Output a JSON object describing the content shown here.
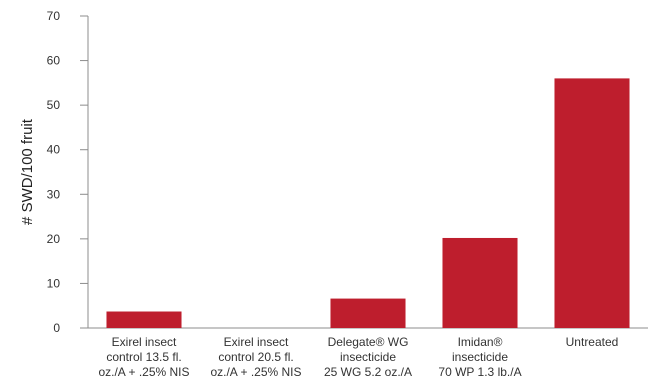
{
  "chart_data": {
    "type": "bar",
    "title": "",
    "xlabel": "",
    "ylabel": "# SWD/100 fruit",
    "ylim": [
      0,
      70
    ],
    "yticks": [
      0,
      10,
      20,
      30,
      40,
      50,
      60,
      70
    ],
    "grid": false,
    "categories": [
      [
        "Exirel insect",
        "control 13.5 fl.",
        "oz./A + .25% NIS"
      ],
      [
        "Exirel insect",
        "control 20.5 fl.",
        "oz./A + .25% NIS"
      ],
      [
        "Delegate® WG",
        "insecticide",
        "25 WG 5.2 oz./A"
      ],
      [
        "Imidan®",
        "insecticide",
        "70 WP 1.3 lb./A"
      ],
      [
        "Untreated"
      ]
    ],
    "values": [
      3.7,
      0,
      6.6,
      20.2,
      56
    ],
    "colors": {
      "bar": "#be1e2d",
      "axis": "#8c8c8c"
    }
  }
}
